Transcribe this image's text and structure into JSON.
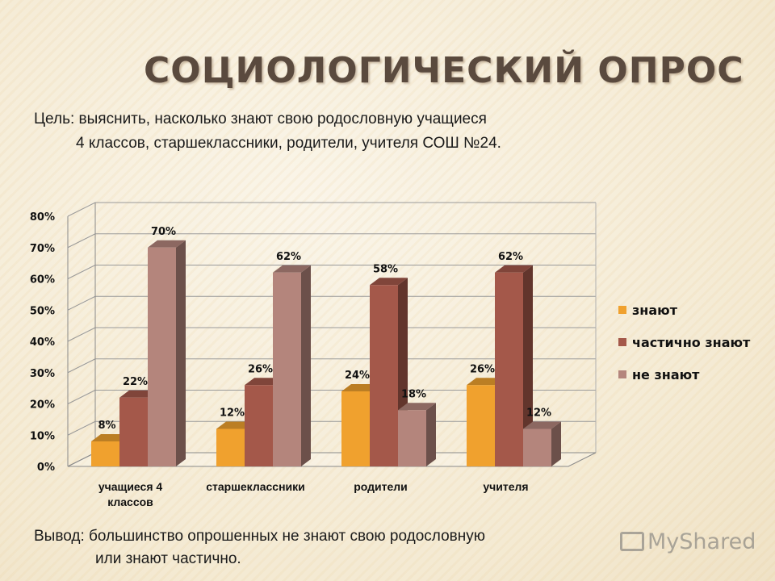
{
  "slide": {
    "title": "СОЦИОЛОГИЧЕСКИЙ ОПРОС",
    "goal_line1": "Цель: выяснить, насколько знают свою родословную учащиеся",
    "goal_line2": "4 классов, старшеклассники, родители, учителя СОШ №24.",
    "conclusion_line1": "Вывод: большинство опрошенных не знают свою родословную",
    "conclusion_line2": "или знают частично.",
    "watermark": "MyShared"
  },
  "chart_data": {
    "type": "bar",
    "style": "3d-clustered-column",
    "categories": [
      "учащиеся 4 классов",
      "старшеклассники",
      "родители",
      "учителя"
    ],
    "series": [
      {
        "name": "знают",
        "color": "#f0a12e",
        "values": [
          8,
          12,
          24,
          26
        ],
        "labels": [
          "8%",
          "12%",
          "24%",
          "26%"
        ]
      },
      {
        "name": "частично знают",
        "color": "#a4584a",
        "values": [
          22,
          26,
          58,
          62
        ],
        "labels": [
          "22%",
          "26%",
          "58%",
          "62%"
        ]
      },
      {
        "name": "не знают",
        "color": "#b4857c",
        "values": [
          70,
          62,
          18,
          12
        ],
        "labels": [
          "70%",
          "62%",
          "18%",
          "12%"
        ]
      }
    ],
    "ylim": [
      0,
      80
    ],
    "yticks": [
      "0%",
      "10%",
      "20%",
      "30%",
      "40%",
      "50%",
      "60%",
      "70%",
      "80%"
    ],
    "grid": true,
    "legend_position": "right"
  }
}
